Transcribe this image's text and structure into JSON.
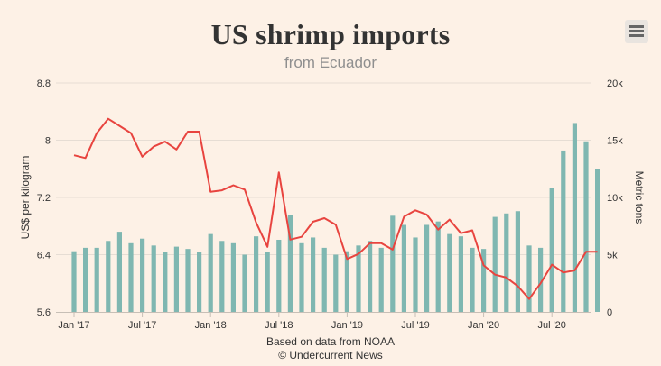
{
  "header": {
    "title": "US shrimp imports",
    "subtitle": "from Ecuador"
  },
  "menu": {
    "icon": "hamburger-menu-icon"
  },
  "credits": {
    "line1": "Based on data from NOAA",
    "line2": "© Undercurrent News"
  },
  "chart_data": {
    "type": "bar+line",
    "title": "US shrimp imports",
    "subtitle": "from Ecuador",
    "x_tick_labels": [
      "Jan '17",
      "Jul '17",
      "Jan '18",
      "Jul '18",
      "Jan '19",
      "Jul '19",
      "Jan '20",
      "Jul '20"
    ],
    "y_left": {
      "label": "US$ per kilogram",
      "range": [
        5.6,
        8.8
      ],
      "ticks": [
        "5.6",
        "6.4",
        "7.2",
        "8",
        "8.8"
      ]
    },
    "y_right": {
      "label": "Metric tons",
      "range": [
        0,
        20000
      ],
      "ticks": [
        "0",
        "5k",
        "10k",
        "15k",
        "20k"
      ]
    },
    "colors": {
      "bars": "#7fb7b1",
      "line": "#e8443f",
      "grid": "#e6ddd4"
    },
    "series": [
      {
        "name": "Volume (metric tons)",
        "type": "bar",
        "axis": "right",
        "values": [
          5300,
          5600,
          5600,
          6200,
          7000,
          6000,
          6400,
          5800,
          5200,
          5700,
          5500,
          5200,
          6800,
          6200,
          6000,
          5000,
          6600,
          5200,
          6300,
          8500,
          6000,
          6500,
          5600,
          5000,
          5300,
          5800,
          6200,
          5600,
          8400,
          7600,
          6500,
          7600,
          7900,
          6800,
          6600,
          5600,
          5500,
          8300,
          8600,
          8800,
          5800,
          5600,
          10800,
          14100,
          16500,
          14900,
          12500
        ]
      },
      {
        "name": "Price (US$ per kilogram)",
        "type": "line",
        "axis": "left",
        "values": [
          7.79,
          7.75,
          8.1,
          8.3,
          8.2,
          8.1,
          7.77,
          7.91,
          7.98,
          7.87,
          8.12,
          8.12,
          7.28,
          7.3,
          7.37,
          7.31,
          6.85,
          6.51,
          7.55,
          6.61,
          6.65,
          6.86,
          6.91,
          6.82,
          6.34,
          6.41,
          6.56,
          6.56,
          6.47,
          6.93,
          7.02,
          6.96,
          6.75,
          6.89,
          6.7,
          6.74,
          6.25,
          6.12,
          6.08,
          5.96,
          5.78,
          6.0,
          6.26,
          6.15,
          6.18,
          6.44,
          6.44
        ]
      }
    ]
  }
}
